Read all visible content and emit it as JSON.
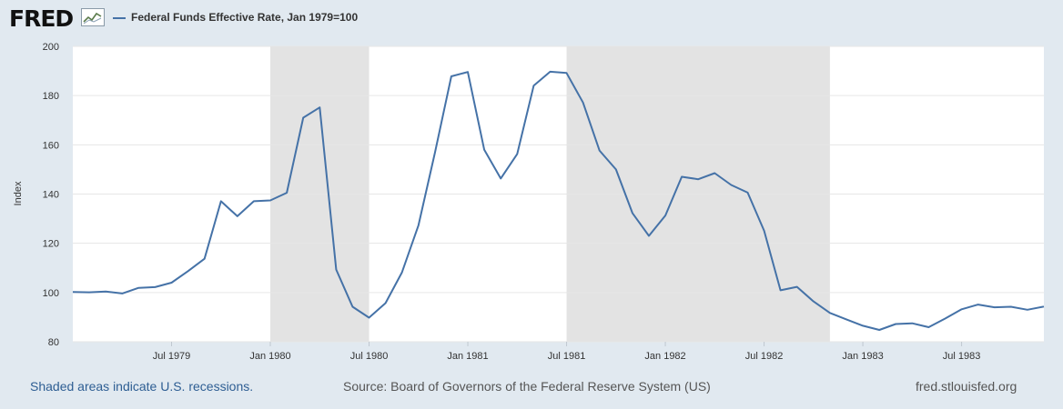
{
  "header": {
    "logo_text": "FRED",
    "legend_label": "Federal Funds Effective Rate, Jan 1979=100"
  },
  "colors": {
    "background": "#e1e9f0",
    "plot_background": "#ffffff",
    "line": "#4572a7",
    "recession": "#e3e3e3",
    "grid": "#e6e6e6"
  },
  "footer": {
    "recession_note": "Shaded areas indicate U.S. recessions.",
    "source": "Source: Board of Governors of the Federal Reserve System (US)",
    "site": "fred.stlouisfed.org"
  },
  "chart_data": {
    "type": "line",
    "ylabel": "Index",
    "ylim": [
      80,
      200
    ],
    "yticks": [
      80,
      100,
      120,
      140,
      160,
      180,
      200
    ],
    "xlim": [
      "1979-01",
      "1983-12"
    ],
    "xticks": [
      {
        "date": "1979-07",
        "label": "Jul 1979"
      },
      {
        "date": "1980-01",
        "label": "Jan 1980"
      },
      {
        "date": "1980-07",
        "label": "Jul 1980"
      },
      {
        "date": "1981-01",
        "label": "Jan 1981"
      },
      {
        "date": "1981-07",
        "label": "Jul 1981"
      },
      {
        "date": "1982-01",
        "label": "Jan 1982"
      },
      {
        "date": "1982-07",
        "label": "Jul 1982"
      },
      {
        "date": "1983-01",
        "label": "Jan 1983"
      },
      {
        "date": "1983-07",
        "label": "Jul 1983"
      }
    ],
    "recessions": [
      {
        "start": "1980-01",
        "end": "1980-07"
      },
      {
        "start": "1981-07",
        "end": "1982-11"
      }
    ],
    "grid": true,
    "series": [
      {
        "name": "Federal Funds Effective Rate, Jan 1979=100",
        "x": [
          "1979-01",
          "1979-02",
          "1979-03",
          "1979-04",
          "1979-05",
          "1979-06",
          "1979-07",
          "1979-08",
          "1979-09",
          "1979-10",
          "1979-11",
          "1979-12",
          "1980-01",
          "1980-02",
          "1980-03",
          "1980-04",
          "1980-05",
          "1980-06",
          "1980-07",
          "1980-08",
          "1980-09",
          "1980-10",
          "1980-11",
          "1980-12",
          "1981-01",
          "1981-02",
          "1981-03",
          "1981-04",
          "1981-05",
          "1981-06",
          "1981-07",
          "1981-08",
          "1981-09",
          "1981-10",
          "1981-11",
          "1981-12",
          "1982-01",
          "1982-02",
          "1982-03",
          "1982-04",
          "1982-05",
          "1982-06",
          "1982-07",
          "1982-08",
          "1982-09",
          "1982-10",
          "1982-11",
          "1982-12",
          "1983-01",
          "1983-02",
          "1983-03",
          "1983-04",
          "1983-05",
          "1983-06",
          "1983-07",
          "1983-08",
          "1983-09",
          "1983-10",
          "1983-11",
          "1983-12"
        ],
        "values": [
          100.2,
          100.1,
          100.4,
          99.6,
          101.9,
          102.2,
          104.0,
          108.7,
          113.7,
          137.1,
          131.0,
          137.1,
          137.4,
          140.5,
          171.0,
          175.2,
          109.3,
          94.2,
          89.8,
          95.7,
          108.2,
          127.3,
          156.8,
          187.8,
          189.6,
          158.0,
          146.3,
          156.3,
          184.0,
          189.7,
          189.2,
          177.2,
          157.7,
          150.0,
          132.3,
          123.0,
          131.3,
          147.0,
          146.0,
          148.5,
          143.7,
          140.6,
          125.1,
          100.9,
          102.3,
          96.4,
          91.7,
          89.1,
          86.5,
          84.8,
          87.2,
          87.5,
          85.9,
          89.4,
          93.2,
          95.1,
          94.0,
          94.2,
          93.0,
          94.3
        ]
      }
    ]
  }
}
